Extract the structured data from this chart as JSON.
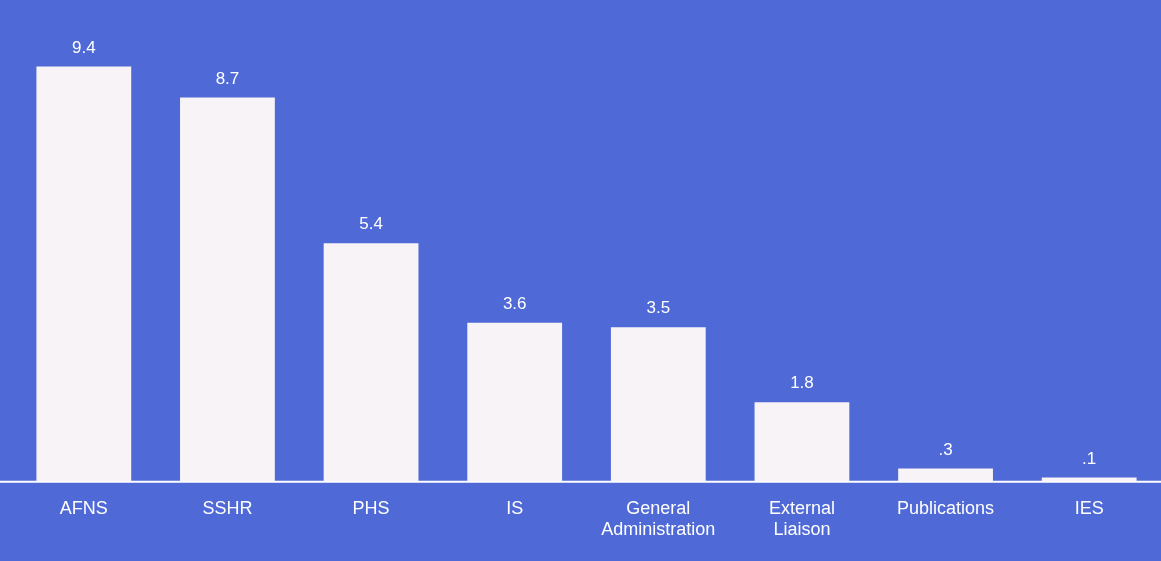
{
  "chart_data": {
    "type": "bar",
    "categories": [
      "AFNS",
      "SSHR",
      "PHS",
      "IS",
      "General Administration",
      "External Liaison",
      "Publications",
      "IES"
    ],
    "values": [
      9.4,
      8.7,
      5.4,
      3.6,
      3.5,
      1.8,
      0.3,
      0.1
    ],
    "value_labels": [
      "9.4",
      "8.7",
      "5.4",
      "3.6",
      "3.5",
      "1.8",
      ".3",
      ".1"
    ],
    "color": "#f7f3f7",
    "grid": false,
    "legend": false
  }
}
